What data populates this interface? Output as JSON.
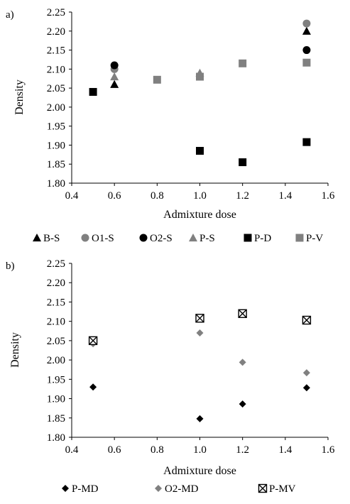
{
  "chart_data": [
    {
      "type": "scatter",
      "panel_label": "a)",
      "xlabel": "Admixture dose",
      "ylabel": "Density",
      "xlim": [
        0.4,
        1.6
      ],
      "ylim": [
        1.8,
        2.25
      ],
      "xticks": [
        "0.4",
        "0.6",
        "0.8",
        "1.0",
        "1.2",
        "1.4",
        "1.6"
      ],
      "yticks": [
        "1.80",
        "1.85",
        "1.90",
        "1.95",
        "2.00",
        "2.05",
        "2.10",
        "2.15",
        "2.20",
        "2.25"
      ],
      "grid": false,
      "legend_position": "bottom",
      "series": [
        {
          "name": "B-S",
          "marker": "triangle",
          "color": "#000000",
          "points": [
            {
              "x": 0.6,
              "y": 2.06
            },
            {
              "x": 1.5,
              "y": 2.2
            }
          ]
        },
        {
          "name": "O1-S",
          "marker": "circle",
          "color": "#808080",
          "points": [
            {
              "x": 0.6,
              "y": 2.1
            },
            {
              "x": 1.5,
              "y": 2.22
            }
          ]
        },
        {
          "name": "O2-S",
          "marker": "circle",
          "color": "#000000",
          "points": [
            {
              "x": 0.6,
              "y": 2.11
            },
            {
              "x": 1.5,
              "y": 2.15
            }
          ]
        },
        {
          "name": "P-S",
          "marker": "triangle",
          "color": "#808080",
          "points": [
            {
              "x": 0.6,
              "y": 2.08
            },
            {
              "x": 1.0,
              "y": 2.09
            }
          ]
        },
        {
          "name": "P-D",
          "marker": "square",
          "color": "#000000",
          "points": [
            {
              "x": 0.5,
              "y": 2.04
            },
            {
              "x": 1.0,
              "y": 1.885
            },
            {
              "x": 1.2,
              "y": 1.855
            },
            {
              "x": 1.5,
              "y": 1.908
            }
          ]
        },
        {
          "name": "P-V",
          "marker": "square",
          "color": "#808080",
          "points": [
            {
              "x": 0.8,
              "y": 2.072
            },
            {
              "x": 1.0,
              "y": 2.08
            },
            {
              "x": 1.2,
              "y": 2.115
            },
            {
              "x": 1.5,
              "y": 2.117
            }
          ]
        }
      ]
    },
    {
      "type": "scatter",
      "panel_label": "b)",
      "xlabel": "Admixture dose",
      "ylabel": "Density",
      "xlim": [
        0.4,
        1.6
      ],
      "ylim": [
        1.8,
        2.25
      ],
      "xticks": [
        "0.4",
        "0.6",
        "0.8",
        "1.0",
        "1.2",
        "1.4",
        "1.6"
      ],
      "yticks": [
        "1.80",
        "1.85",
        "1.90",
        "1.95",
        "2.00",
        "2.05",
        "2.10",
        "2.15",
        "2.20",
        "2.25"
      ],
      "grid": false,
      "legend_position": "bottom",
      "series": [
        {
          "name": "P-MD",
          "marker": "diamond",
          "color": "#000000",
          "points": [
            {
              "x": 0.5,
              "y": 1.93
            },
            {
              "x": 1.0,
              "y": 1.848
            },
            {
              "x": 1.2,
              "y": 1.886
            },
            {
              "x": 1.5,
              "y": 1.928
            }
          ]
        },
        {
          "name": "O2-MD",
          "marker": "diamond",
          "color": "#808080",
          "points": [
            {
              "x": 0.5,
              "y": 2.042
            },
            {
              "x": 1.0,
              "y": 2.07
            },
            {
              "x": 1.2,
              "y": 1.994
            },
            {
              "x": 1.5,
              "y": 1.967
            }
          ]
        },
        {
          "name": "P-MV",
          "marker": "xsquare",
          "color": "#000000",
          "points": [
            {
              "x": 0.5,
              "y": 2.05
            },
            {
              "x": 1.0,
              "y": 2.108
            },
            {
              "x": 1.2,
              "y": 2.12
            },
            {
              "x": 1.5,
              "y": 2.103
            }
          ]
        }
      ]
    }
  ]
}
